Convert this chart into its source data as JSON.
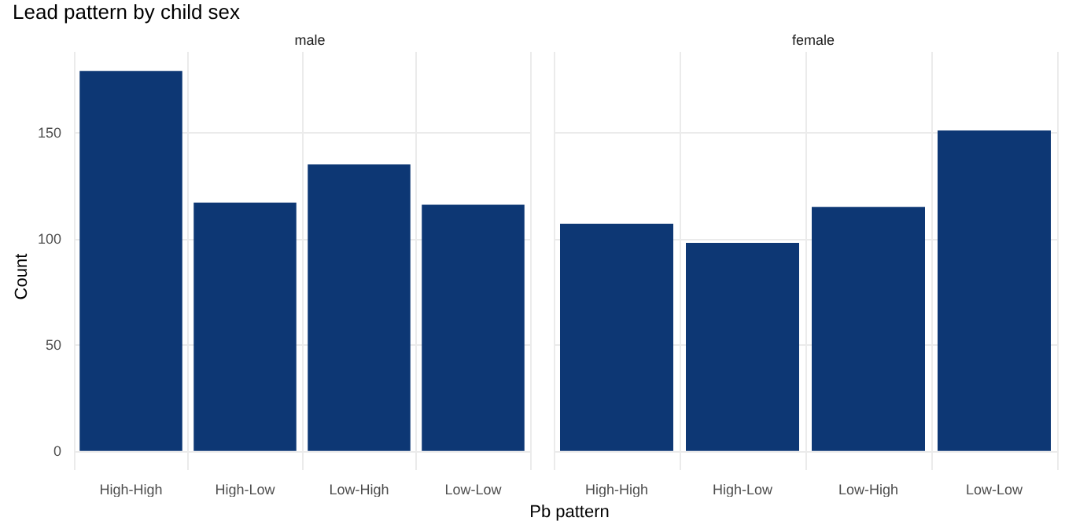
{
  "chart_data": [
    {
      "type": "bar",
      "title": "Lead pattern by child sex",
      "subtitle": "male",
      "xlabel": "Pb pattern",
      "ylabel": "Count",
      "categories": [
        "High-High",
        "High-Low",
        "Low-High",
        "Low-Low"
      ],
      "values": [
        179,
        117,
        135,
        116
      ],
      "color": "#0d3774",
      "ylim": [
        -9,
        188
      ],
      "yticks": [
        0,
        50,
        100,
        150
      ],
      "grid": true
    },
    {
      "type": "bar",
      "subtitle": "female",
      "categories": [
        "High-High",
        "High-Low",
        "Low-High",
        "Low-Low"
      ],
      "values": [
        107,
        98,
        115,
        151
      ],
      "color": "#0d3774",
      "ylim": [
        -9,
        188
      ],
      "yticks": [
        0,
        50,
        100,
        150
      ],
      "grid": true,
      "tick_labels": "x"
    }
  ]
}
